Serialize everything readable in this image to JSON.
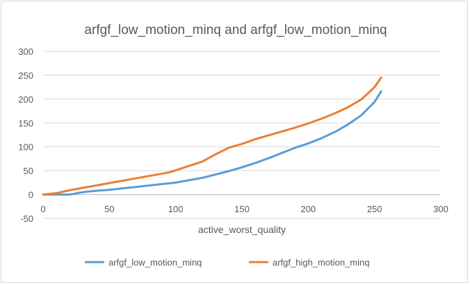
{
  "chart_data": {
    "type": "line",
    "title": "arfgf_low_motion_minq and arfgf_low_motion_minq",
    "xlabel": "active_worst_quality",
    "ylabel": "",
    "xlim": [
      0,
      300
    ],
    "ylim": [
      -50,
      300
    ],
    "xticks": [
      "0",
      "50",
      "100",
      "150",
      "200",
      "250",
      "300"
    ],
    "yticks": [
      "-50",
      "0",
      "50",
      "100",
      "150",
      "200",
      "250",
      "300"
    ],
    "grid": true,
    "legend_position": "bottom",
    "series": [
      {
        "name": "arfgf_low_motion_minq",
        "color": "#5b9bd5",
        "x": [
          0,
          10,
          20,
          30,
          40,
          50,
          60,
          70,
          80,
          90,
          100,
          110,
          120,
          130,
          140,
          150,
          160,
          170,
          180,
          190,
          200,
          210,
          220,
          230,
          240,
          250,
          255
        ],
        "y": [
          0,
          0,
          0,
          5,
          8,
          10,
          13,
          16,
          19,
          22,
          25,
          30,
          35,
          42,
          49,
          57,
          66,
          76,
          87,
          98,
          107,
          118,
          131,
          147,
          166,
          194,
          216
        ]
      },
      {
        "name": "arfgf_high_motion_minq",
        "color": "#ed7d31",
        "x": [
          0,
          10,
          20,
          30,
          40,
          50,
          60,
          70,
          80,
          90,
          96,
          110,
          120,
          130,
          140,
          150,
          160,
          170,
          180,
          190,
          200,
          210,
          220,
          230,
          240,
          250,
          255
        ],
        "y": [
          0,
          3,
          9,
          14,
          19,
          24,
          29,
          34,
          39,
          44,
          47,
          60,
          69,
          84,
          98,
          106,
          116,
          124,
          132,
          140,
          149,
          159,
          170,
          183,
          199,
          225,
          245
        ]
      }
    ]
  }
}
